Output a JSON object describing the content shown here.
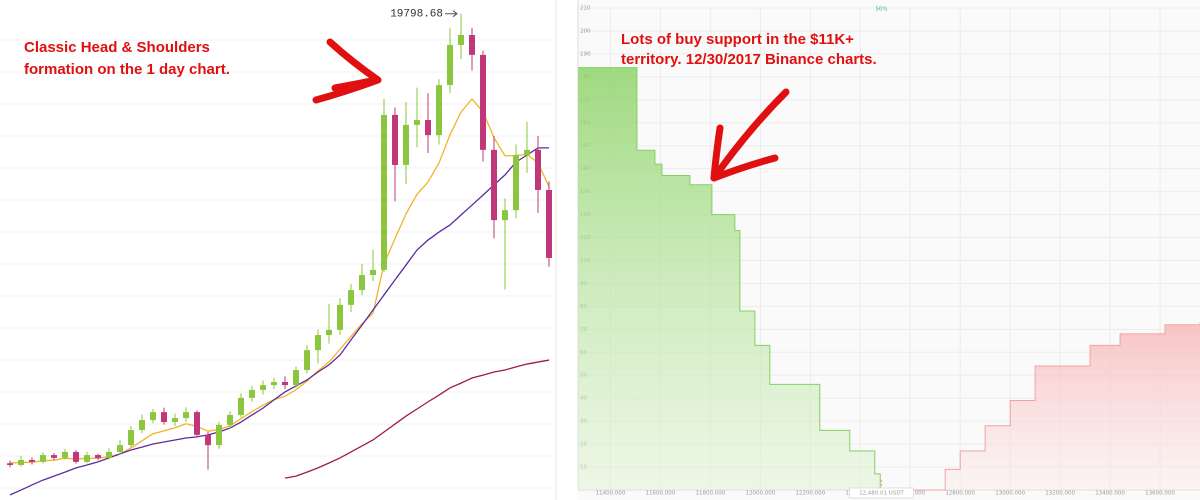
{
  "chart_data": [
    {
      "type": "candlestick",
      "peak_label": "19798.68",
      "annotation": [
        "Classic Head & Shoulders",
        "formation on the 1 day chart."
      ],
      "ylim": [
        2700,
        20280
      ],
      "up_color": "#8cc63f",
      "down_color": "#c0387a",
      "open": [
        3990,
        3930,
        4110,
        4040,
        4280,
        4180,
        4390,
        4040,
        4280,
        4180,
        4390,
        4630,
        5160,
        5510,
        5790,
        5440,
        5580,
        5790,
        4990,
        4630,
        5340,
        5690,
        6290,
        6570,
        6740,
        6850,
        6740,
        7270,
        7970,
        8500,
        8680,
        9560,
        10080,
        10610,
        10790,
        16240,
        14480,
        15890,
        16060,
        15530,
        17290,
        18700,
        19050,
        18350,
        15010,
        12540,
        12890,
        14830,
        15010,
        13600
      ],
      "close": [
        3930,
        4110,
        4040,
        4280,
        4180,
        4390,
        4040,
        4280,
        4180,
        4390,
        4630,
        5160,
        5510,
        5790,
        5440,
        5580,
        5790,
        4990,
        4630,
        5340,
        5690,
        6290,
        6570,
        6740,
        6850,
        6740,
        7270,
        7970,
        8500,
        8680,
        9560,
        10080,
        10610,
        10790,
        16240,
        14480,
        15890,
        16060,
        15530,
        17290,
        18700,
        19050,
        18350,
        15010,
        12540,
        12890,
        14830,
        15010,
        13600,
        11210
      ],
      "high": [
        4080,
        4250,
        4200,
        4380,
        4350,
        4500,
        4450,
        4400,
        4330,
        4520,
        4800,
        5300,
        5700,
        5900,
        5950,
        5740,
        5960,
        5850,
        5100,
        5450,
        5820,
        6450,
        6720,
        6900,
        7000,
        7050,
        7400,
        8150,
        8700,
        9600,
        9800,
        10300,
        11000,
        11500,
        16800,
        16500,
        16700,
        17200,
        17000,
        17500,
        19300,
        19798.68,
        19300,
        18500,
        15500,
        13300,
        15200,
        16000,
        15500,
        13900
      ],
      "low": [
        3850,
        3880,
        3950,
        3980,
        4100,
        4120,
        3980,
        3990,
        4100,
        4120,
        4300,
        4550,
        5050,
        5400,
        5350,
        5300,
        5450,
        4900,
        3770,
        4500,
        5200,
        5600,
        6150,
        6400,
        6600,
        6600,
        6650,
        7150,
        7500,
        8200,
        8500,
        9300,
        9900,
        10400,
        10700,
        13200,
        13800,
        15100,
        14900,
        15200,
        17000,
        18200,
        17800,
        14600,
        11900,
        10100,
        12600,
        14200,
        12800,
        10900
      ],
      "lines": [
        {
          "color": "#f0b429",
          "values": [
            4000,
            4020,
            4030,
            4080,
            4100,
            4170,
            4140,
            4170,
            4170,
            4220,
            4320,
            4530,
            4780,
            5030,
            5130,
            5240,
            5380,
            5290,
            5120,
            5180,
            5310,
            5560,
            5810,
            6030,
            6230,
            6350,
            6580,
            6880,
            7240,
            7550,
            8000,
            8450,
            8900,
            9260,
            11000,
            11890,
            12760,
            13450,
            13880,
            14550,
            15540,
            16340,
            16800,
            16350,
            15440,
            14800,
            14810,
            14860,
            14550,
            13720
          ]
        },
        {
          "color": "#5b2c9f",
          "values": [
            2880,
            3050,
            3230,
            3400,
            3540,
            3680,
            3830,
            3930,
            4040,
            4180,
            4320,
            4460,
            4560,
            4670,
            4740,
            4810,
            4880,
            4920,
            4990,
            5090,
            5230,
            5440,
            5690,
            5930,
            6220,
            6500,
            6710,
            6920,
            7200,
            7450,
            7800,
            8330,
            8850,
            9380,
            9910,
            10440,
            10960,
            11490,
            11840,
            12120,
            12370,
            12720,
            13070,
            13420,
            13780,
            14130,
            14580,
            14830,
            15080,
            15080
          ]
        },
        {
          "color": "#a01850",
          "values": [
            null,
            null,
            null,
            null,
            null,
            null,
            null,
            null,
            null,
            null,
            null,
            null,
            null,
            null,
            null,
            null,
            null,
            null,
            null,
            null,
            null,
            null,
            null,
            null,
            null,
            3470,
            3540,
            3680,
            3830,
            4000,
            4180,
            4390,
            4600,
            4810,
            5090,
            5370,
            5650,
            5900,
            6150,
            6390,
            6640,
            6810,
            6990,
            7090,
            7200,
            7270,
            7380,
            7480,
            7550,
            7620
          ]
        }
      ]
    },
    {
      "type": "depth",
      "annotation": [
        "Lots of buy support in the $11K+",
        "territory. 12/30/2017 Binance charts."
      ],
      "top_label": "50%",
      "mid_label": "12,480.01 USDT",
      "xlim": [
        11270,
        13760
      ],
      "ylim": [
        0,
        210
      ],
      "xticks": [
        {
          "value": 11400,
          "label": "11400.000"
        },
        {
          "value": 11600,
          "label": "11600.000"
        },
        {
          "value": 11800,
          "label": "11800.000"
        },
        {
          "value": 12000,
          "label": "12000.000"
        },
        {
          "value": 12200,
          "label": "12200.000"
        },
        {
          "value": 12400,
          "label": "12400.000"
        },
        {
          "value": 12600,
          "label": "12600.000"
        },
        {
          "value": 12800,
          "label": "12800.000"
        },
        {
          "value": 13000,
          "label": "13000.000"
        },
        {
          "value": 13200,
          "label": "13200.000"
        },
        {
          "value": 13400,
          "label": "13400.000"
        },
        {
          "value": 13600,
          "label": "13600.000"
        }
      ],
      "yticks": [
        10,
        20,
        30,
        40,
        50,
        60,
        70,
        80,
        90,
        100,
        110,
        120,
        130,
        140,
        150,
        160,
        170,
        180,
        190,
        200,
        210
      ],
      "grid": true,
      "series": [
        {
          "color": "#86cf62",
          "x": [
            11270,
            11506,
            11578,
            11606,
            11718,
            11806,
            11898,
            11918,
            11978,
            12038,
            12238,
            12358,
            12458,
            12480
          ],
          "values": [
            184,
            148,
            142,
            137,
            133,
            120,
            113,
            78,
            63,
            46,
            26,
            17,
            7,
            0
          ]
        },
        {
          "color": "#f3a2a2",
          "x": [
            12490,
            12740,
            12800,
            12900,
            13000,
            13100,
            13320,
            13440,
            13620,
            13760
          ],
          "values": [
            0,
            9,
            17,
            28,
            39,
            54,
            63,
            68,
            72,
            73
          ]
        }
      ]
    }
  ]
}
